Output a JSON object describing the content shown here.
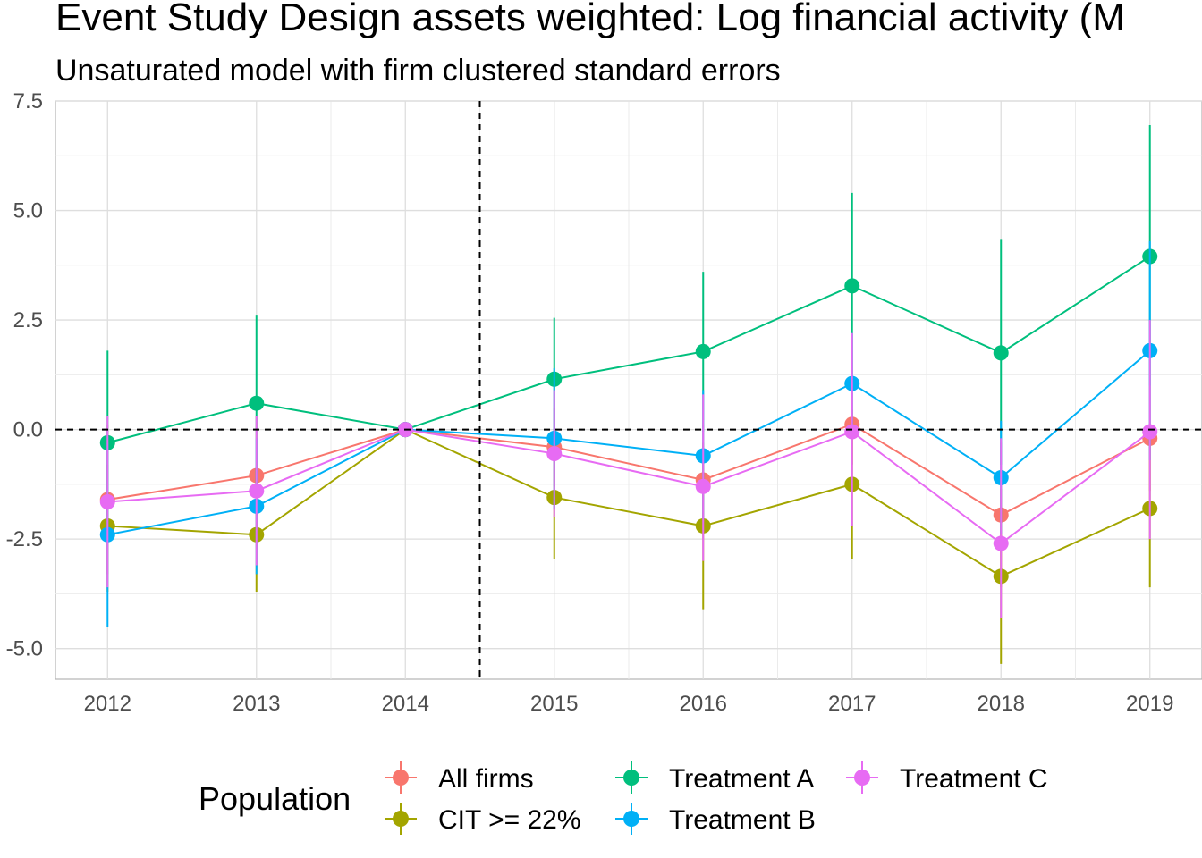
{
  "chart_data": {
    "type": "line",
    "title": "Event Study Design assets weighted: Log financial activity (M",
    "subtitle": "Unsaturated model with firm clustered standard errors",
    "xlabel": "",
    "ylabel": "",
    "x": [
      2012,
      2013,
      2014,
      2015,
      2016,
      2017,
      2018,
      2019
    ],
    "xlim": [
      2011.65,
      2019.35
    ],
    "ylim": [
      -5.7,
      7.5
    ],
    "y_ticks": [
      "7.5",
      "5.0",
      "2.5",
      "0.0",
      "-2.5",
      "-5.0"
    ],
    "x_ticks": [
      "2012",
      "2013",
      "2014",
      "2015",
      "2016",
      "2017",
      "2018",
      "2019"
    ],
    "grid": true,
    "reference_lines": {
      "vertical_x": 2014.5,
      "horizontal_y": 0.0,
      "style": "dashed"
    },
    "legend": {
      "title": "Population",
      "position": "bottom"
    },
    "series": [
      {
        "name": "All firms",
        "color": "#F8766D",
        "values": [
          -1.6,
          -1.05,
          0.0,
          -0.4,
          -1.15,
          0.12,
          -1.95,
          -0.2
        ],
        "lower": [
          -3.3,
          -2.4,
          0.0,
          -1.3,
          -2.4,
          -0.8,
          -3.6,
          -1.4
        ],
        "upper": [
          0.1,
          0.3,
          0.0,
          0.5,
          0.1,
          1.0,
          -0.3,
          1.0
        ]
      },
      {
        "name": "CIT >= 22%",
        "color": "#A3A500",
        "values": [
          -2.2,
          -2.4,
          0.0,
          -1.55,
          -2.2,
          -1.25,
          -3.35,
          -1.8
        ],
        "lower": [
          -3.7,
          -3.7,
          0.0,
          -2.95,
          -4.1,
          -2.95,
          -5.35,
          -3.6
        ],
        "upper": [
          -0.8,
          -1.1,
          0.0,
          -0.15,
          -0.3,
          0.45,
          -1.35,
          0.0
        ]
      },
      {
        "name": "Treatment A",
        "color": "#00BF7D",
        "values": [
          -0.3,
          0.6,
          0.0,
          1.15,
          1.78,
          3.28,
          1.75,
          3.95
        ],
        "lower": [
          -2.4,
          -1.3,
          0.0,
          -0.25,
          -0.05,
          1.15,
          -0.8,
          1.0
        ],
        "upper": [
          1.8,
          2.6,
          0.0,
          2.55,
          3.6,
          5.4,
          4.35,
          6.95
        ]
      },
      {
        "name": "Treatment B",
        "color": "#00B0F6",
        "values": [
          -2.4,
          -1.75,
          0.0,
          -0.2,
          -0.6,
          1.05,
          -1.1,
          1.8
        ],
        "lower": [
          -4.5,
          -3.3,
          0.0,
          -1.8,
          -2.05,
          -0.1,
          -2.4,
          -0.7
        ],
        "upper": [
          -0.3,
          -0.2,
          0.0,
          1.4,
          0.9,
          2.2,
          0.2,
          4.3
        ]
      },
      {
        "name": "Treatment C",
        "color": "#E76BF3",
        "values": [
          -1.65,
          -1.4,
          0.0,
          -0.55,
          -1.3,
          -0.05,
          -2.6,
          -0.05
        ],
        "lower": [
          -3.6,
          -3.1,
          0.0,
          -2.0,
          -3.0,
          -2.2,
          -4.3,
          -2.5
        ],
        "upper": [
          0.3,
          0.3,
          0.0,
          0.9,
          0.8,
          2.2,
          -0.2,
          2.5
        ]
      }
    ]
  }
}
